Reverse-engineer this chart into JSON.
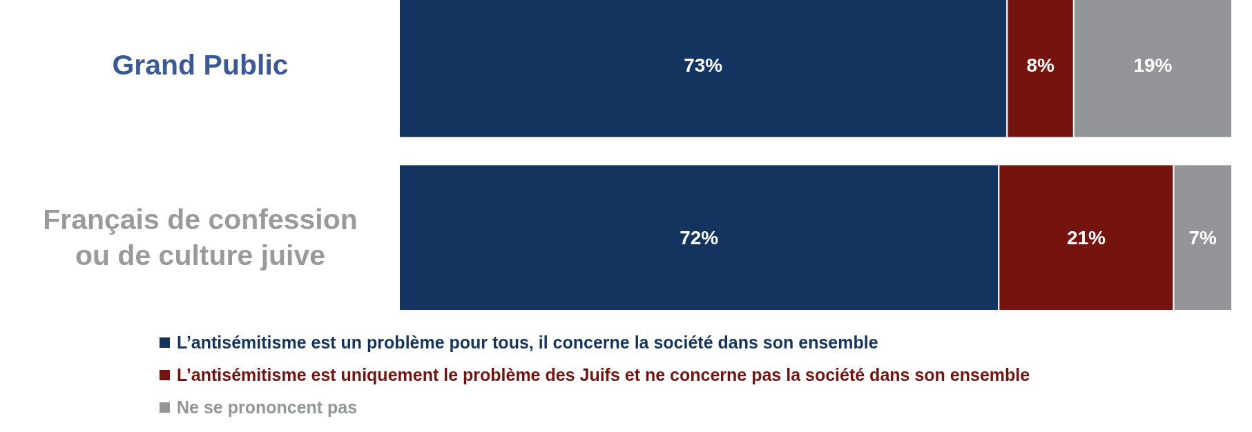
{
  "chart_data": {
    "type": "bar",
    "orientation": "horizontal",
    "stacked": true,
    "categories": [
      "Grand Public",
      "Français de confession ou de culture juive"
    ],
    "series": [
      {
        "name": "L’antisémitisme est un problème pour tous, il concerne la société dans son ensemble",
        "color": "#12345f",
        "values": [
          73,
          72
        ],
        "value_labels": [
          "73%",
          "72%"
        ]
      },
      {
        "name": "L’antisémitisme est uniquement le problème des Juifs et ne concerne pas la société dans son ensemble",
        "color": "#75140f",
        "values": [
          8,
          21
        ],
        "value_labels": [
          "8%",
          "21%"
        ]
      },
      {
        "name": "Ne se prononcent pas",
        "color": "#939598",
        "values": [
          19,
          7
        ],
        "value_labels": [
          "19%",
          "7%"
        ]
      }
    ],
    "legend": "bottom"
  }
}
